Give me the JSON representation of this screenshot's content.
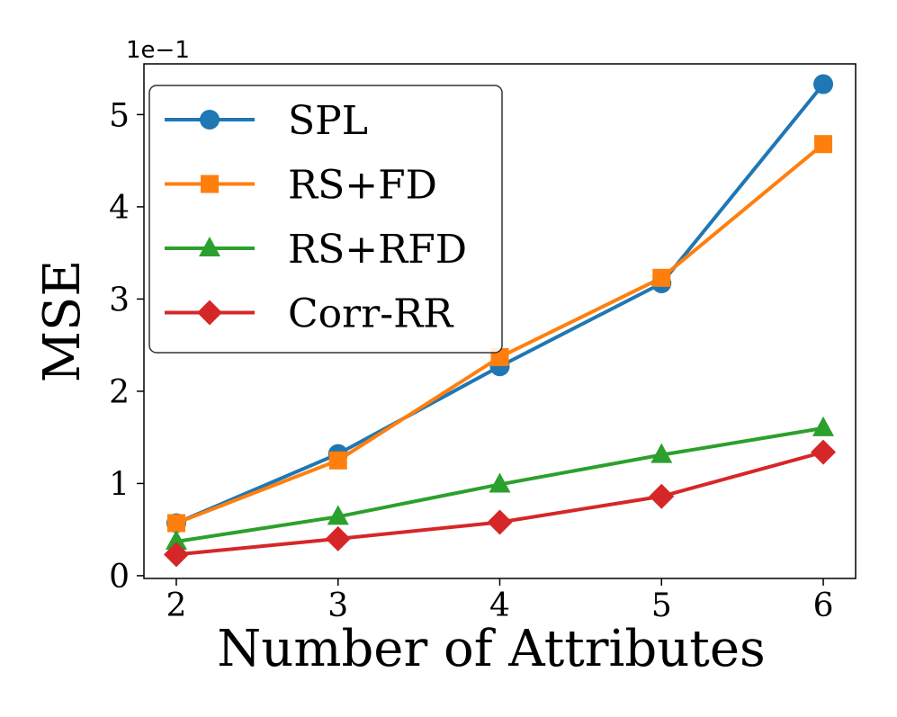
{
  "chart_data": {
    "type": "line",
    "title": "",
    "xlabel": "Number of Attributes",
    "ylabel": "MSE",
    "y_scale_label": "1e−1",
    "x": [
      2,
      3,
      4,
      5,
      6
    ],
    "x_tick_labels": [
      "2",
      "3",
      "4",
      "5",
      "6"
    ],
    "y_ticks": [
      0,
      1,
      2,
      3,
      4,
      5
    ],
    "y_tick_labels": [
      "0",
      "1",
      "2",
      "3",
      "4",
      "5"
    ],
    "xlim": [
      1.8,
      6.2
    ],
    "ylim": [
      -0.03,
      5.55
    ],
    "grid": false,
    "legend_position": "upper-left",
    "series": [
      {
        "name": "SPL",
        "color": "#1f77b4",
        "marker": "circle",
        "values": [
          0.57,
          1.32,
          2.27,
          3.17,
          5.33
        ]
      },
      {
        "name": "RS+FD",
        "color": "#ff7f0e",
        "marker": "square",
        "values": [
          0.57,
          1.25,
          2.37,
          3.23,
          4.68
        ]
      },
      {
        "name": "RS+RFD",
        "color": "#2ca02c",
        "marker": "triangle",
        "values": [
          0.37,
          0.64,
          0.99,
          1.31,
          1.6
        ]
      },
      {
        "name": "Corr-RR",
        "color": "#d62728",
        "marker": "diamond",
        "values": [
          0.23,
          0.4,
          0.58,
          0.86,
          1.34
        ]
      }
    ]
  }
}
